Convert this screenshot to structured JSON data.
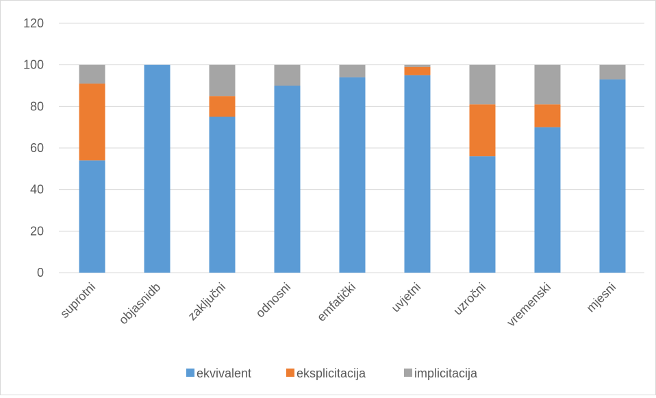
{
  "chart_data": {
    "type": "bar",
    "stacked": true,
    "categories": [
      "suprotni",
      "objasnidb",
      "zaključni",
      "odnosni",
      "emfatički",
      "uvjetni",
      "uzročni",
      "vremenski",
      "mjesni"
    ],
    "series": [
      {
        "name": "ekvivalent",
        "color": "#5b9bd5",
        "values": [
          54,
          100,
          75,
          90,
          94,
          95,
          56,
          70,
          93
        ]
      },
      {
        "name": "eksplicitacija",
        "color": "#ed7d31",
        "values": [
          37,
          0,
          10,
          0,
          0,
          4,
          25,
          11,
          0
        ]
      },
      {
        "name": "implicitacija",
        "color": "#a5a5a5",
        "values": [
          9,
          0,
          15,
          10,
          6,
          1,
          19,
          19,
          7
        ]
      }
    ],
    "ylim": [
      0,
      120
    ],
    "yticks": [
      0,
      20,
      40,
      60,
      80,
      100,
      120
    ],
    "grid": true,
    "legend_position": "bottom"
  }
}
